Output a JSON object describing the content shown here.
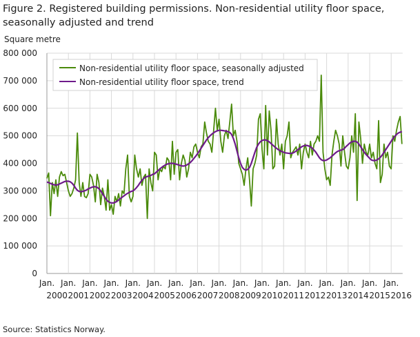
{
  "title": "Figure 2. Registered building permissions. Non-residential utility floor space, seasonally adjusted and trend",
  "source": "Source: Statistics Norway.",
  "chart_data": {
    "type": "line",
    "title": "Figure 2. Registered building permissions. Non-residential utility floor space, seasonally adjusted and trend",
    "ylabel": "Square metre",
    "ylim": [
      0,
      800000
    ],
    "yticks": [
      0,
      100000,
      200000,
      300000,
      400000,
      500000,
      600000,
      700000,
      800000
    ],
    "ytick_labels": [
      "0",
      "100 000",
      "200 000",
      "300 000",
      "400 000",
      "500 000",
      "600 000",
      "700 000",
      "800 000"
    ],
    "x_start": "2000-01",
    "x_frequency": "monthly",
    "xtick_labels": [
      {
        "month": "Jan.",
        "year": "2000"
      },
      {
        "month": "Jan.",
        "year": "2001"
      },
      {
        "month": "Jan.",
        "year": "2002"
      },
      {
        "month": "Jan.",
        "year": "2003"
      },
      {
        "month": "Jan.",
        "year": "2004"
      },
      {
        "month": "Jan.",
        "year": "2005"
      },
      {
        "month": "Jan.",
        "year": "2006"
      },
      {
        "month": "Jan.",
        "year": "2007"
      },
      {
        "month": "Jan.",
        "year": "2008"
      },
      {
        "month": "Jan.",
        "year": "2009"
      },
      {
        "month": "Jan.",
        "year": "2010"
      },
      {
        "month": "Jan.",
        "year": "2011"
      },
      {
        "month": "Jan.",
        "year": "2012"
      },
      {
        "month": "Jan.",
        "year": "2013"
      },
      {
        "month": "Jan.",
        "year": "2014"
      },
      {
        "month": "Jan.",
        "year": "2015"
      },
      {
        "month": "Jan.",
        "year": "2016"
      }
    ],
    "grid": true,
    "legend_position": "top-left",
    "series": [
      {
        "name": "Non-residential utility floor space, seasonally adjusted",
        "color": "#4a8a0a",
        "values": [
          345000,
          365000,
          210000,
          330000,
          290000,
          340000,
          280000,
          350000,
          370000,
          355000,
          360000,
          330000,
          300000,
          280000,
          290000,
          310000,
          340000,
          510000,
          330000,
          280000,
          330000,
          280000,
          275000,
          290000,
          360000,
          350000,
          320000,
          260000,
          360000,
          330000,
          250000,
          310000,
          280000,
          230000,
          340000,
          230000,
          250000,
          215000,
          280000,
          260000,
          290000,
          245000,
          300000,
          290000,
          380000,
          430000,
          280000,
          260000,
          280000,
          430000,
          380000,
          350000,
          380000,
          320000,
          350000,
          360000,
          200000,
          380000,
          330000,
          300000,
          440000,
          430000,
          340000,
          380000,
          370000,
          390000,
          380000,
          420000,
          410000,
          340000,
          480000,
          360000,
          440000,
          450000,
          340000,
          400000,
          430000,
          410000,
          350000,
          380000,
          440000,
          420000,
          460000,
          470000,
          440000,
          420000,
          460000,
          470000,
          550000,
          510000,
          480000,
          470000,
          440000,
          520000,
          600000,
          520000,
          560000,
          480000,
          440000,
          500000,
          520000,
          490000,
          550000,
          615000,
          500000,
          520000,
          480000,
          400000,
          380000,
          360000,
          320000,
          380000,
          420000,
          340000,
          245000,
          380000,
          400000,
          430000,
          560000,
          580000,
          450000,
          380000,
          610000,
          430000,
          590000,
          520000,
          380000,
          390000,
          560000,
          470000,
          430000,
          470000,
          380000,
          480000,
          500000,
          550000,
          420000,
          440000,
          450000,
          460000,
          430000,
          470000,
          380000,
          440000,
          470000,
          440000,
          420000,
          480000,
          430000,
          470000,
          480000,
          500000,
          480000,
          720000,
          440000,
          380000,
          340000,
          350000,
          320000,
          430000,
          480000,
          520000,
          500000,
          470000,
          390000,
          500000,
          440000,
          390000,
          380000,
          420000,
          500000,
          440000,
          580000,
          265000,
          550000,
          490000,
          400000,
          470000,
          440000,
          430000,
          470000,
          420000,
          440000,
          400000,
          380000,
          555000,
          330000,
          360000,
          470000,
          420000,
          440000,
          390000,
          380000,
          500000,
          480000,
          520000,
          550000,
          570000,
          470000
        ]
      },
      {
        "name": "Non-residential utility floor space, trend",
        "color": "#6e1a8a",
        "values": [
          332000,
          330000,
          327000,
          324000,
          322000,
          321000,
          322000,
          325000,
          328000,
          331000,
          334000,
          335000,
          335000,
          333000,
          328000,
          320000,
          310000,
          302000,
          298000,
          297000,
          298000,
          300000,
          303000,
          307000,
          310000,
          313000,
          315000,
          315000,
          313000,
          308000,
          300000,
          290000,
          280000,
          270000,
          262000,
          258000,
          256000,
          256000,
          258000,
          262000,
          267000,
          272000,
          277000,
          282000,
          287000,
          291000,
          295000,
          298000,
          300000,
          305000,
          312000,
          320000,
          330000,
          338000,
          345000,
          350000,
          352000,
          354000,
          356000,
          360000,
          362000,
          368000,
          374000,
          380000,
          385000,
          390000,
          394000,
          397000,
          399000,
          400000,
          400000,
          399000,
          397000,
          395000,
          393000,
          391000,
          390000,
          391000,
          394000,
          398000,
          403000,
          410000,
          418000,
          426000,
          435000,
          445000,
          455000,
          465000,
          475000,
          485000,
          493000,
          500000,
          506000,
          511000,
          515000,
          518000,
          520000,
          520000,
          519000,
          518000,
          517000,
          515000,
          512000,
          505000,
          490000,
          470000,
          445000,
          420000,
          400000,
          385000,
          378000,
          375000,
          378000,
          385000,
          400000,
          420000,
          440000,
          458000,
          470000,
          478000,
          483000,
          485000,
          485000,
          482000,
          478000,
          472000,
          466000,
          460000,
          455000,
          450000,
          446000,
          443000,
          440000,
          438000,
          437000,
          436000,
          436000,
          437000,
          440000,
          445000,
          450000,
          455000,
          460000,
          463000,
          465000,
          465000,
          463000,
          460000,
          455000,
          448000,
          440000,
          430000,
          420000,
          413000,
          410000,
          410000,
          412000,
          416000,
          420000,
          426000,
          432000,
          438000,
          443000,
          446000,
          448000,
          450000,
          455000,
          462000,
          468000,
          474000,
          478000,
          480000,
          480000,
          477000,
          470000,
          460000,
          450000,
          440000,
          432000,
          425000,
          418000,
          412000,
          410000,
          410000,
          412000,
          416000,
          422000,
          430000,
          440000,
          450000,
          460000,
          470000,
          480000,
          490000,
          498000,
          505000,
          510000,
          513000,
          515000
        ]
      }
    ]
  }
}
